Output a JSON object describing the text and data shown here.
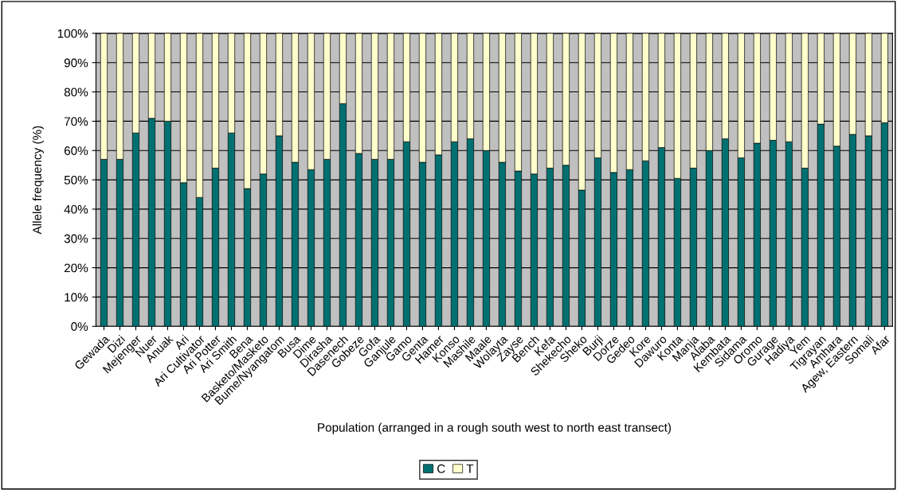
{
  "chart_data": {
    "type": "bar",
    "stacked": true,
    "xlabel": "Population (arranged in a rough south west to north east transect)",
    "ylabel": "Allele frequency (%)",
    "categories": [
      "Gewada",
      "Dizi",
      "Mejenger",
      "Nuer",
      "Anuak",
      "Ari",
      "Ari Cultivator",
      "Ari Potter",
      "Ari Smith",
      "Bena",
      "Basketo/Masketo",
      "Bume/Nyangatom",
      "Busa",
      "Dime",
      "Dirasha",
      "Dasenech",
      "Gobeze",
      "Gofa",
      "Ganjule",
      "Gamo",
      "Genta",
      "Hamer",
      "Konso",
      "Mashile",
      "Maale",
      "Wolayta",
      "Zayse",
      "Bench",
      "Kefa",
      "Shekecho",
      "Sheko",
      "Burji",
      "Dorze",
      "Gedeo",
      "Kore",
      "Dawuro",
      "Konta",
      "Manja",
      "Alaba",
      "Kembata",
      "Sidama",
      "Oromo",
      "Gurage",
      "Hadiya",
      "Yem",
      "Tigrayan",
      "Amhara",
      "Agew, Eastern",
      "Somali",
      "Afar"
    ],
    "series": [
      {
        "name": "C",
        "color": "#007070",
        "values": [
          57,
          57,
          66,
          71,
          70,
          49,
          44,
          54,
          66,
          47,
          52,
          65,
          56,
          53.5,
          57,
          76,
          59,
          57,
          57,
          63,
          56,
          58.5,
          63,
          64,
          60,
          56,
          53,
          52,
          54,
          55,
          46.5,
          57.5,
          52.5,
          53.5,
          56.5,
          61,
          50.5,
          54,
          60,
          64,
          57.5,
          62.5,
          63.5,
          63,
          54,
          69,
          61.5,
          65.5,
          65,
          69.5
        ]
      },
      {
        "name": "T",
        "color": "#ffffcc",
        "values": [
          43,
          43,
          34,
          29,
          30,
          51,
          56,
          46,
          34,
          53,
          48,
          35,
          44,
          46.5,
          43,
          24,
          41,
          43,
          43,
          37,
          44,
          41.5,
          37,
          36,
          40,
          44,
          47,
          48,
          46,
          45,
          53.5,
          42.5,
          47.5,
          46.5,
          43.5,
          39,
          49.5,
          46,
          40,
          36,
          42.5,
          37.5,
          36.5,
          37,
          46,
          31,
          38.5,
          34.5,
          35,
          30.5
        ]
      }
    ],
    "ylim": [
      0,
      100
    ],
    "yticks": [
      {
        "value": 0,
        "label": "0%"
      },
      {
        "value": 10,
        "label": "10%"
      },
      {
        "value": 20,
        "label": "20%"
      },
      {
        "value": 30,
        "label": "30%"
      },
      {
        "value": 40,
        "label": "40%"
      },
      {
        "value": 50,
        "label": "50%"
      },
      {
        "value": 60,
        "label": "60%"
      },
      {
        "value": 70,
        "label": "70%"
      },
      {
        "value": 80,
        "label": "80%"
      },
      {
        "value": 90,
        "label": "90%"
      },
      {
        "value": 100,
        "label": "100%"
      }
    ],
    "grid": "y",
    "legend": "bottom"
  }
}
